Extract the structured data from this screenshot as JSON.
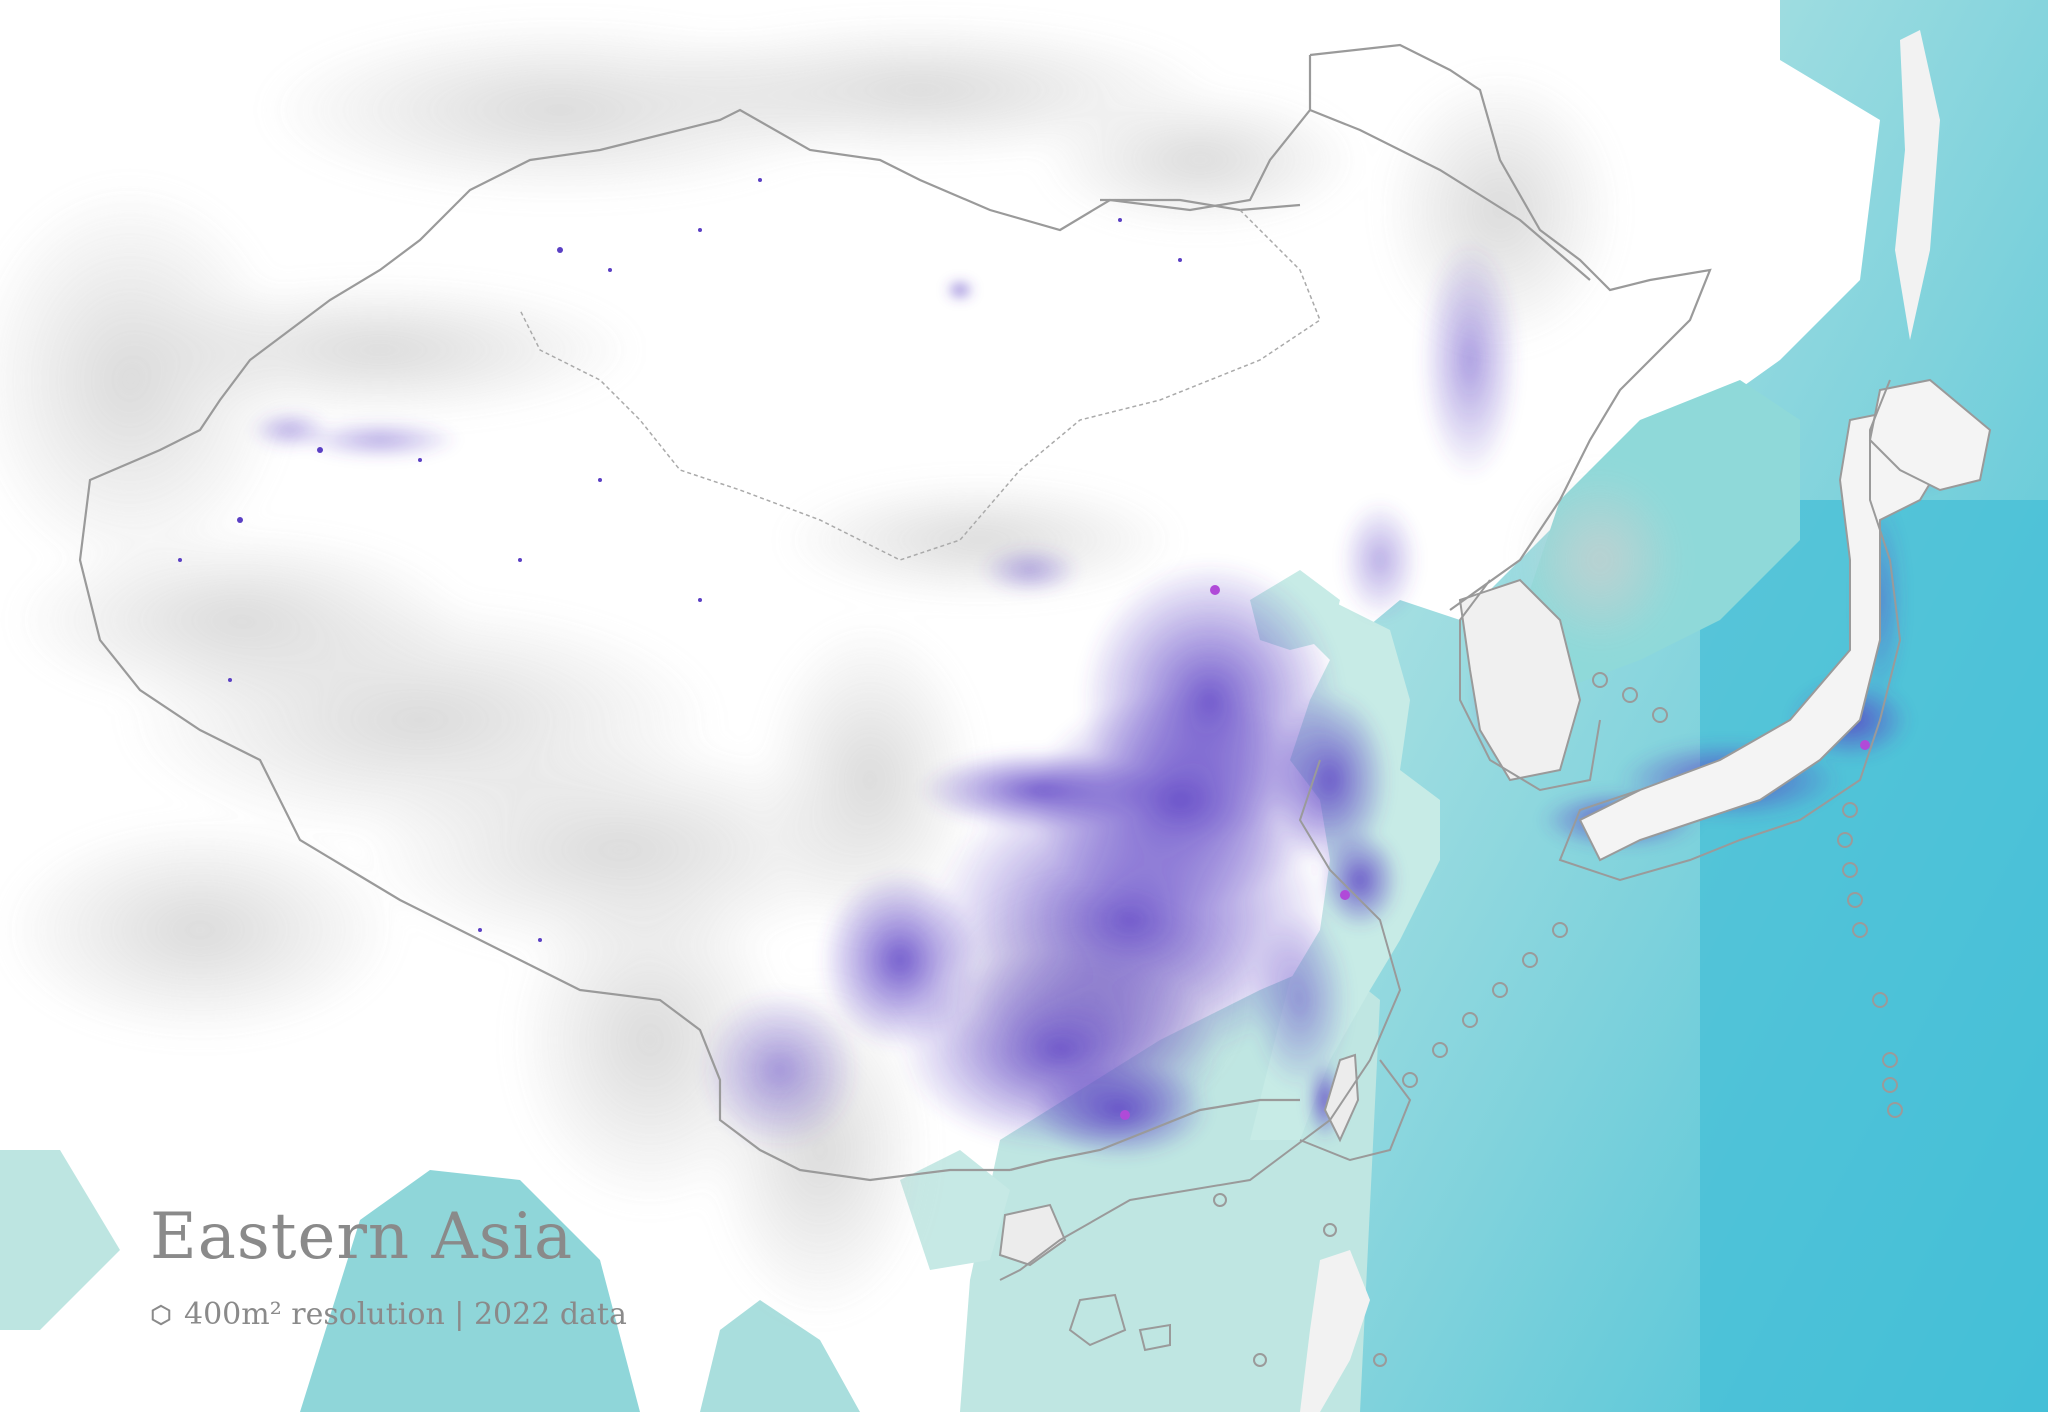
{
  "map": {
    "title": "Eastern Asia",
    "subtitle": "400m² resolution | 2022 data",
    "legend_icon": "hexagon-icon",
    "colors": {
      "ocean_shallow": "#bfe6e2",
      "ocean_deep": "#58c6d8",
      "land": "#ffffff",
      "terrain_shade": "#d2d2d2",
      "border": "#9a9a9a",
      "population": "#5a3fc4",
      "population_dense": "#b04ad8",
      "legend_text": "#8a8a8a"
    }
  }
}
